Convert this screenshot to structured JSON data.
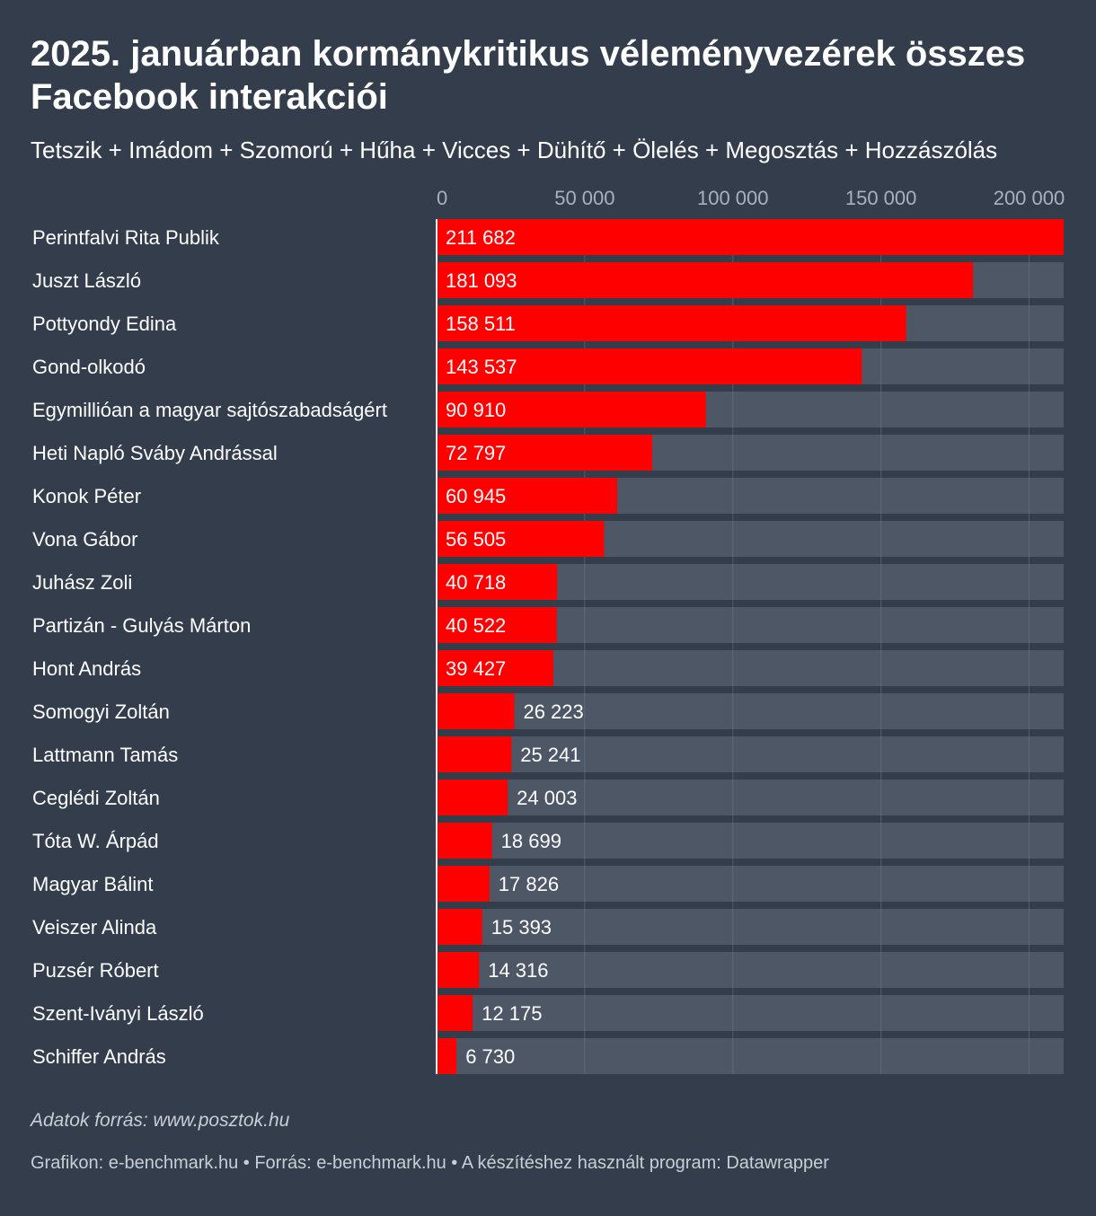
{
  "title": "2025. januárban kormánykritikus véleményvezérek összes Facebook interakciói",
  "subtitle": "Tetszik + Imádom + Szomorú + Hűha + Vicces + Dühítő + Ölelés + Megosztás + Hozzászólás",
  "source": "Adatok forrás: www.posztok.hu",
  "footer": "Grafikon: e-benchmark.hu • Forrás: e-benchmark.hu • A készítéshez használt program: Datawrapper",
  "colors": {
    "background": "#333d4c",
    "bar": "#ff0000",
    "track": "#4d5766",
    "gridline": "#6a7382",
    "tick_label": "#aab1bc"
  },
  "chart_data": {
    "type": "bar",
    "orientation": "horizontal",
    "title": "2025. januárban kormánykritikus véleményvezérek összes Facebook interakciói",
    "subtitle": "Tetszik + Imádom + Szomorú + Hűha + Vicces + Dühítő + Ölelés + Megosztás + Hozzászólás",
    "xlim": [
      0,
      211682
    ],
    "ticks": [
      0,
      50000,
      100000,
      150000,
      200000
    ],
    "tick_labels": [
      "0",
      "50 000",
      "100 000",
      "150 000",
      "200 000"
    ],
    "grid": true,
    "categories": [
      "Perintfalvi Rita Publik",
      "Juszt László",
      "Pottyondy Edina",
      "Gond-olkodó",
      "Egymillióan a magyar sajtószabadságért",
      "Heti Napló Sváby Andrással",
      "Konok Péter",
      "Vona Gábor",
      "Juhász Zoli",
      "Partizán - Gulyás Márton",
      "Hont András",
      "Somogyi Zoltán",
      "Lattmann Tamás",
      "Ceglédi Zoltán",
      "Tóta W. Árpád",
      "Magyar Bálint",
      "Veiszer Alinda",
      "Puzsér Róbert",
      "Szent-Iványi László",
      "Schiffer András"
    ],
    "values": [
      211682,
      181093,
      158511,
      143537,
      90910,
      72797,
      60945,
      56505,
      40718,
      40522,
      39427,
      26223,
      25241,
      24003,
      18699,
      17826,
      15393,
      14316,
      12175,
      6730
    ],
    "value_labels": [
      "211 682",
      "181 093",
      "158 511",
      "143 537",
      "90 910",
      "72 797",
      "60 945",
      "56 505",
      "40 718",
      "40 522",
      "39 427",
      "26 223",
      "25 241",
      "24 003",
      "18 699",
      "17 826",
      "15 393",
      "14 316",
      "12 175",
      "6 730"
    ]
  }
}
